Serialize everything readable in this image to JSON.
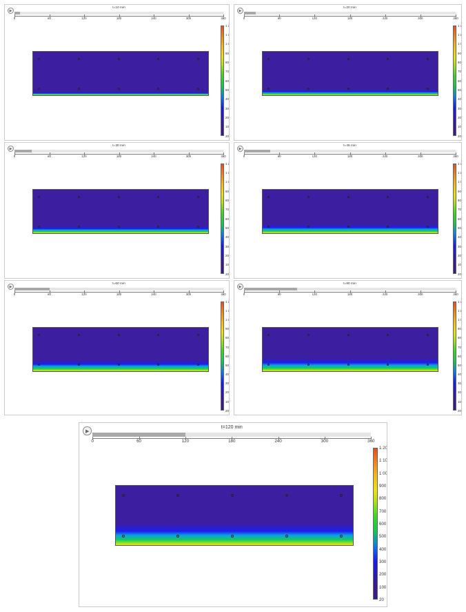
{
  "frames": [
    {
      "time_label": "t=10 min",
      "progress": 0.028,
      "front": 0.07
    },
    {
      "time_label": "t=20 min",
      "progress": 0.056,
      "front": 0.12
    },
    {
      "time_label": "t=30 min",
      "progress": 0.083,
      "front": 0.16
    },
    {
      "time_label": "t=45 min",
      "progress": 0.125,
      "front": 0.2
    },
    {
      "time_label": "t=60 min",
      "progress": 0.167,
      "front": 0.25
    },
    {
      "time_label": "t=90 min",
      "progress": 0.25,
      "front": 0.3
    },
    {
      "time_label": "t=120 min",
      "progress": 0.333,
      "front": 0.36
    }
  ],
  "timeline_ticks": [
    "0",
    "60",
    "120",
    "180",
    "240",
    "300",
    "360"
  ],
  "colorbar_labels": [
    "1 200",
    "1 100",
    "1 000",
    "900",
    "800",
    "700",
    "600",
    "500",
    "400",
    "300",
    "200",
    "100",
    "20"
  ],
  "colors": {
    "slab_top": "#3b1fa0",
    "blue": "#1d1df0",
    "cyan": "#0aa4e0",
    "green": "#14c864",
    "lime": "#7ee020",
    "yellow": "#f0e612"
  },
  "icons": {
    "play": "play-icon",
    "sensor": "thermocouple-marker-icon"
  }
}
